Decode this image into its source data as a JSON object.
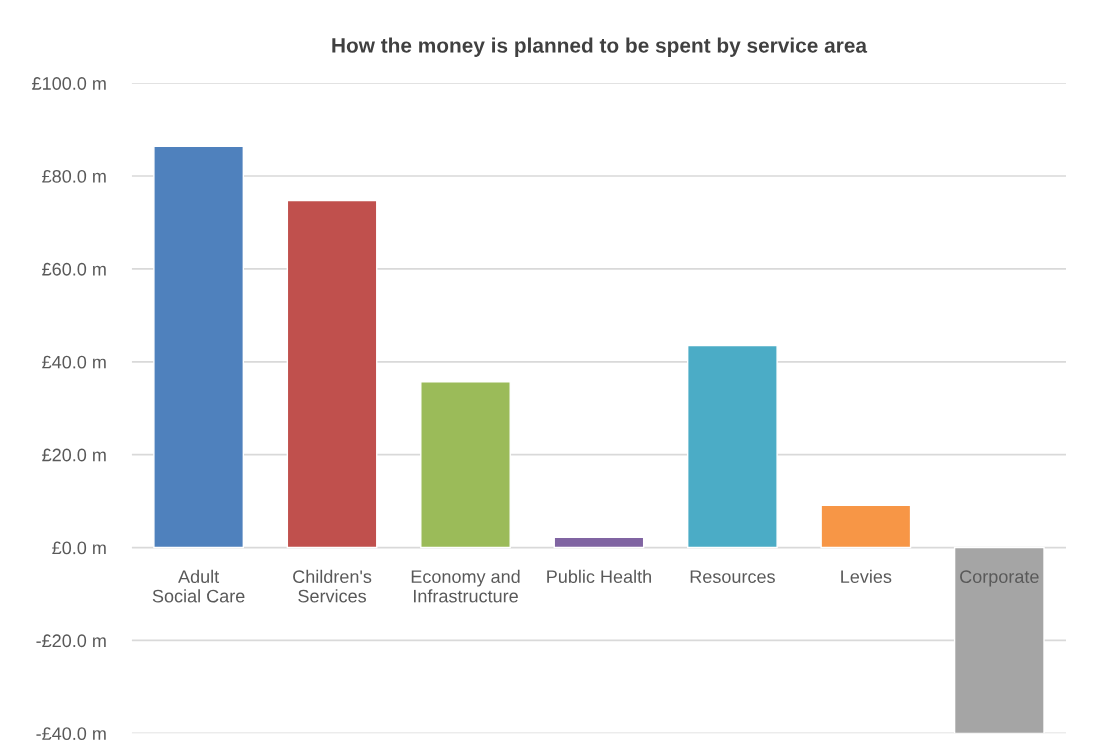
{
  "chart_data": {
    "type": "bar",
    "title": "How the money is planned to be spent by service area",
    "categories": [
      "Adult Social Care",
      "Children's Services",
      "Economy and Infrastructure",
      "Public Health",
      "Resources",
      "Levies",
      "Corporate"
    ],
    "values": [
      86.4,
      74.7,
      35.7,
      2.2,
      43.5,
      9.1,
      -40.0
    ],
    "colors": [
      "#4f81bd",
      "#c0504d",
      "#9bbb59",
      "#8064a2",
      "#4bacc6",
      "#f79646",
      "#a5a5a5"
    ],
    "ylim": [
      -40,
      100
    ],
    "yticks": [
      {
        "value": -40,
        "label": "-£40.0 m"
      },
      {
        "value": -20,
        "label": "-£20.0 m"
      },
      {
        "value": 0,
        "label": "£0.0 m"
      },
      {
        "value": 20,
        "label": "£20.0 m"
      },
      {
        "value": 40,
        "label": "£40.0 m"
      },
      {
        "value": 60,
        "label": "£60.0 m"
      },
      {
        "value": 80,
        "label": "£80.0 m"
      },
      {
        "value": 100,
        "label": "£100.0 m"
      }
    ],
    "grid": "y",
    "legend": false
  }
}
